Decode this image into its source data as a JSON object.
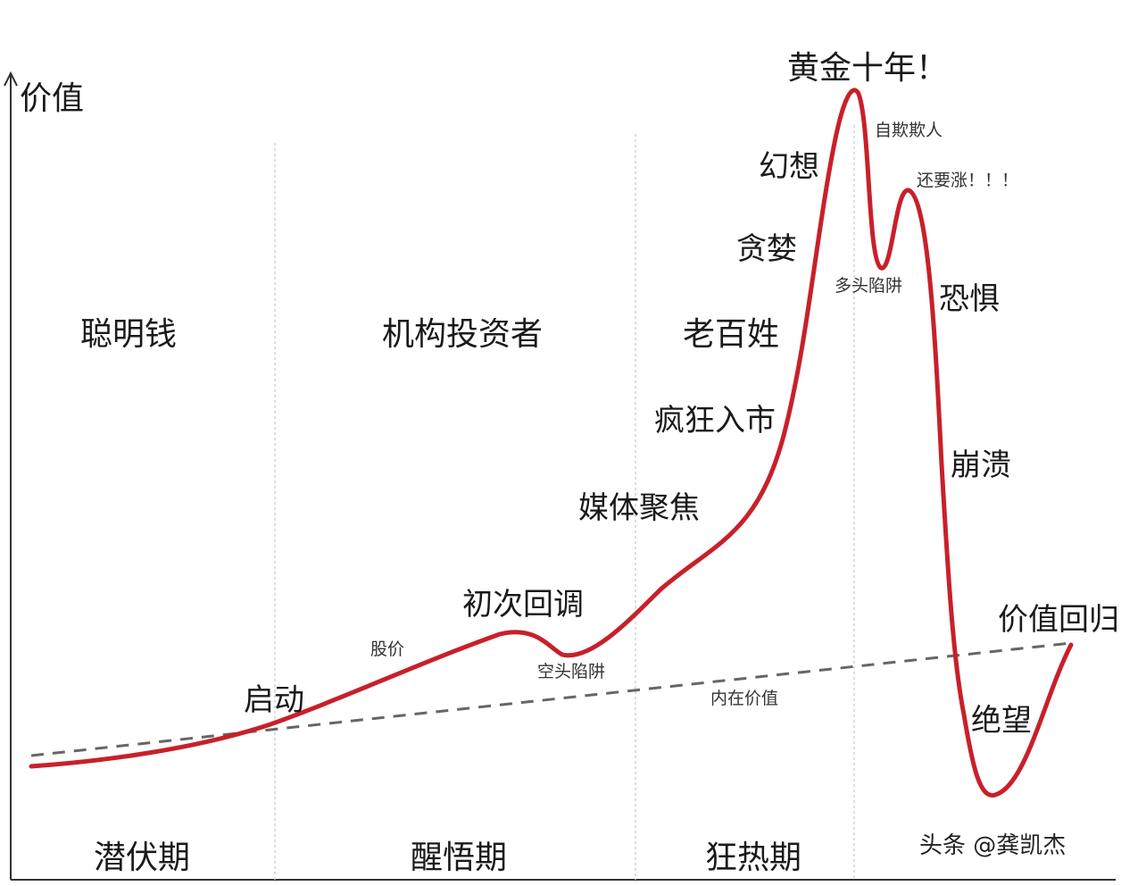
{
  "axis": {
    "y_label": "价值"
  },
  "investors": {
    "smart_money": "聪明钱",
    "institutions": "机构投资者",
    "retail": "老百姓"
  },
  "phases": {
    "latent": "潜伏期",
    "awakening": "醒悟期",
    "mania": "狂热期"
  },
  "curve_labels": {
    "launch": "启动",
    "stock_price": "股价",
    "first_pullback": "初次回调",
    "bear_trap": "空头陷阱",
    "intrinsic_value": "内在价值",
    "media_focus": "媒体聚焦",
    "frenzy": "疯狂入市",
    "greed": "贪婪",
    "fantasy": "幻想",
    "golden_decade": "黄金十年！",
    "self_deception": "自欺欺人",
    "bull_trap": "多头陷阱",
    "still_rising": "还要涨！！！",
    "fear": "恐惧",
    "collapse": "崩溃",
    "despair": "绝望",
    "mean_reversion": "价值回归"
  },
  "watermark": "头条 @龚凯杰",
  "colors": {
    "price_curve": "#c8202a",
    "intrinsic_value_line": "#666666",
    "divider": "#d2d2d2"
  }
}
